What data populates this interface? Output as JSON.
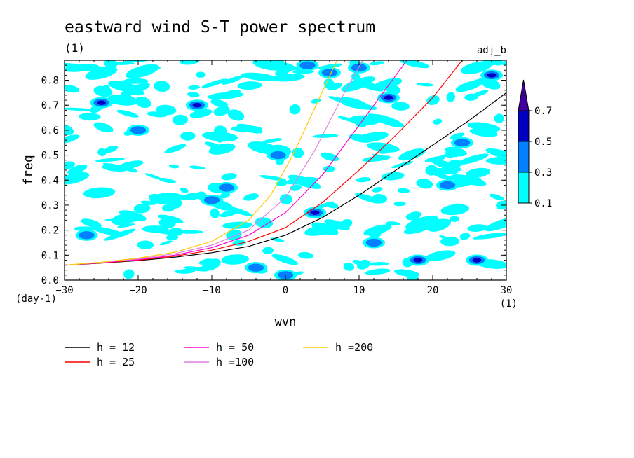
{
  "chart_data": {
    "type": "heatmap",
    "title": "eastward wind S-T power spectrum",
    "subtitle_left": "(1)",
    "subtitle_right": "adj_b",
    "xlabel": "wvn",
    "ylabel": "freq",
    "xunit": "(1)",
    "yunit": "(day-1)",
    "xlim": [
      -30,
      30
    ],
    "ylim": [
      0,
      0.88
    ],
    "xticks": [
      "-30",
      "-20",
      "-10",
      "0",
      "10",
      "20",
      "30"
    ],
    "yticks": [
      "0.0",
      "0.1",
      "0.2",
      "0.3",
      "0.4",
      "0.5",
      "0.6",
      "0.7",
      "0.8"
    ],
    "contour_levels": [
      0.1,
      0.3,
      0.5,
      0.7
    ],
    "colorbar_labels": [
      "0.7",
      "0.5",
      "0.3",
      "0.1"
    ],
    "level_colors": [
      "#00ffff",
      "#0080ff",
      "#0000c0",
      "#4000a0"
    ],
    "shaded_regions": [
      {
        "x": -25,
        "y": 0.71,
        "level": 0.5
      },
      {
        "x": -12,
        "y": 0.7,
        "level": 0.5
      },
      {
        "x": -20,
        "y": 0.6,
        "level": 0.3
      },
      {
        "x": -10,
        "y": 0.32,
        "level": 0.3
      },
      {
        "x": -8,
        "y": 0.37,
        "level": 0.3
      },
      {
        "x": 4,
        "y": 0.27,
        "level": 0.5
      },
      {
        "x": 6,
        "y": 0.83,
        "level": 0.3
      },
      {
        "x": 10,
        "y": 0.85,
        "level": 0.3
      },
      {
        "x": 14,
        "y": 0.73,
        "level": 0.5
      },
      {
        "x": 22,
        "y": 0.38,
        "level": 0.3
      },
      {
        "x": 26,
        "y": 0.08,
        "level": 0.5
      },
      {
        "x": 18,
        "y": 0.08,
        "level": 0.5
      },
      {
        "x": 28,
        "y": 0.82,
        "level": 0.5
      },
      {
        "x": -4,
        "y": 0.05,
        "level": 0.3
      },
      {
        "x": 0,
        "y": 0.02,
        "level": 0.3
      },
      {
        "x": 3,
        "y": 0.86,
        "level": 0.3
      },
      {
        "x": -27,
        "y": 0.18,
        "level": 0.3
      },
      {
        "x": 24,
        "y": 0.55,
        "level": 0.3
      },
      {
        "x": -1,
        "y": 0.5,
        "level": 0.3
      },
      {
        "x": 12,
        "y": 0.15,
        "level": 0.3
      }
    ],
    "series": [
      {
        "name": "h = 12",
        "color": "#000000",
        "x": [
          -30,
          -25,
          -20,
          -15,
          -10,
          -5,
          0,
          5,
          10,
          15,
          20,
          25,
          30
        ],
        "y": [
          0.06,
          0.068,
          0.078,
          0.092,
          0.11,
          0.135,
          0.18,
          0.25,
          0.34,
          0.44,
          0.54,
          0.64,
          0.75
        ]
      },
      {
        "name": "h = 25",
        "color": "#ff0000",
        "x": [
          -30,
          -25,
          -20,
          -15,
          -10,
          -5,
          0,
          5,
          10,
          15,
          20,
          24
        ],
        "y": [
          0.06,
          0.069,
          0.08,
          0.096,
          0.12,
          0.155,
          0.21,
          0.31,
          0.44,
          0.58,
          0.73,
          0.88
        ]
      },
      {
        "name": "h = 50",
        "color": "#ff00cc",
        "x": [
          -30,
          -25,
          -20,
          -15,
          -10,
          -5,
          0,
          5,
          10,
          14,
          16.5
        ],
        "y": [
          0.06,
          0.07,
          0.082,
          0.1,
          0.13,
          0.18,
          0.27,
          0.42,
          0.62,
          0.78,
          0.88
        ]
      },
      {
        "name": "h =100",
        "color": "#e080e0",
        "x": [
          -30,
          -25,
          -20,
          -15,
          -10,
          -5,
          0,
          4,
          8,
          10.5
        ],
        "y": [
          0.06,
          0.071,
          0.085,
          0.106,
          0.14,
          0.2,
          0.33,
          0.52,
          0.75,
          0.88
        ]
      },
      {
        "name": "h =200",
        "color": "#ffcc00",
        "x": [
          -30,
          -25,
          -20,
          -15,
          -10,
          -5,
          -2,
          1,
          4,
          7
        ],
        "y": [
          0.06,
          0.072,
          0.088,
          0.112,
          0.155,
          0.24,
          0.34,
          0.5,
          0.69,
          0.88
        ]
      }
    ],
    "legend_position": "bottom"
  }
}
